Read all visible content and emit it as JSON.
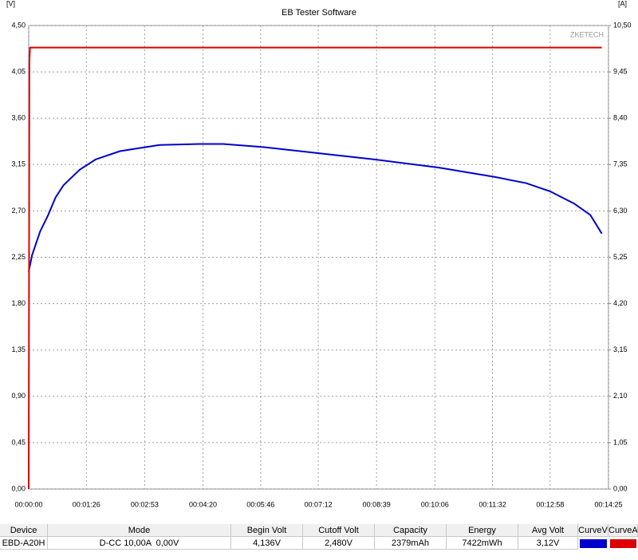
{
  "chart_data": {
    "type": "line",
    "title": "EB Tester Software",
    "y_label": "[V]",
    "y2_label": "[A]",
    "annotation": "ZKETECH",
    "xlim": [
      0,
      865
    ],
    "xticks": [
      {
        "value": 0,
        "label": "00:00:00"
      },
      {
        "value": 86,
        "label": "00:01:26"
      },
      {
        "value": 173,
        "label": "00:02:53"
      },
      {
        "value": 260,
        "label": "00:04:20"
      },
      {
        "value": 346,
        "label": "00:05:46"
      },
      {
        "value": 432,
        "label": "00:07:12"
      },
      {
        "value": 519,
        "label": "00:08:39"
      },
      {
        "value": 606,
        "label": "00:10:06"
      },
      {
        "value": 692,
        "label": "00:11:32"
      },
      {
        "value": 778,
        "label": "00:12:58"
      },
      {
        "value": 865,
        "label": "00:14:25"
      }
    ],
    "ylim": [
      0,
      4.5
    ],
    "yticks": [
      {
        "value": 0,
        "label": "0,00"
      },
      {
        "value": 0.45,
        "label": "0,45"
      },
      {
        "value": 0.9,
        "label": "0,90"
      },
      {
        "value": 1.35,
        "label": "1,35"
      },
      {
        "value": 1.8,
        "label": "1,80"
      },
      {
        "value": 2.25,
        "label": "2,25"
      },
      {
        "value": 2.7,
        "label": "2,70"
      },
      {
        "value": 3.15,
        "label": "3,15"
      },
      {
        "value": 3.6,
        "label": "3,60"
      },
      {
        "value": 4.05,
        "label": "4,05"
      },
      {
        "value": 4.5,
        "label": "4,50"
      }
    ],
    "y2lim": [
      0,
      10.5
    ],
    "y2ticks": [
      {
        "value": 0,
        "label": "0,00"
      },
      {
        "value": 1.05,
        "label": "1,05"
      },
      {
        "value": 2.1,
        "label": "2,10"
      },
      {
        "value": 3.15,
        "label": "3,15"
      },
      {
        "value": 4.2,
        "label": "4,20"
      },
      {
        "value": 5.25,
        "label": "5,25"
      },
      {
        "value": 6.3,
        "label": "6,30"
      },
      {
        "value": 7.35,
        "label": "7,35"
      },
      {
        "value": 8.4,
        "label": "8,40"
      },
      {
        "value": 9.45,
        "label": "9,45"
      },
      {
        "value": 10.5,
        "label": "10,50"
      }
    ],
    "grid": true,
    "series": [
      {
        "name": "CurveV",
        "color": "#0000cc",
        "axis": "y",
        "x": [
          0,
          5,
          17,
          29,
          40,
          52,
          76,
          100,
          136,
          195,
          255,
          290,
          350,
          433,
          516,
          612,
          695,
          742,
          778,
          814,
          838,
          855
        ],
        "values": [
          2.11,
          2.27,
          2.5,
          2.66,
          2.83,
          2.95,
          3.1,
          3.2,
          3.28,
          3.34,
          3.35,
          3.35,
          3.32,
          3.26,
          3.2,
          3.12,
          3.03,
          2.97,
          2.89,
          2.77,
          2.66,
          2.48
        ]
      },
      {
        "name": "CurveA",
        "color": "#dd0000",
        "axis": "y2",
        "x": [
          0,
          1,
          2,
          855
        ],
        "values": [
          0,
          9.7,
          10.0,
          10.0
        ]
      }
    ]
  },
  "table": {
    "headers": [
      "Device",
      "Mode",
      "Begin Volt",
      "Cutoff Volt",
      "Capacity",
      "Energy",
      "Avg Volt",
      "CurveV",
      "CurveA"
    ],
    "rows": [
      [
        "EBD-A20H",
        "D-CC 10,00A  0,00V",
        "4,136V",
        "2,480V",
        "2379mAh",
        "7422mWh",
        "3,12V"
      ]
    ]
  }
}
